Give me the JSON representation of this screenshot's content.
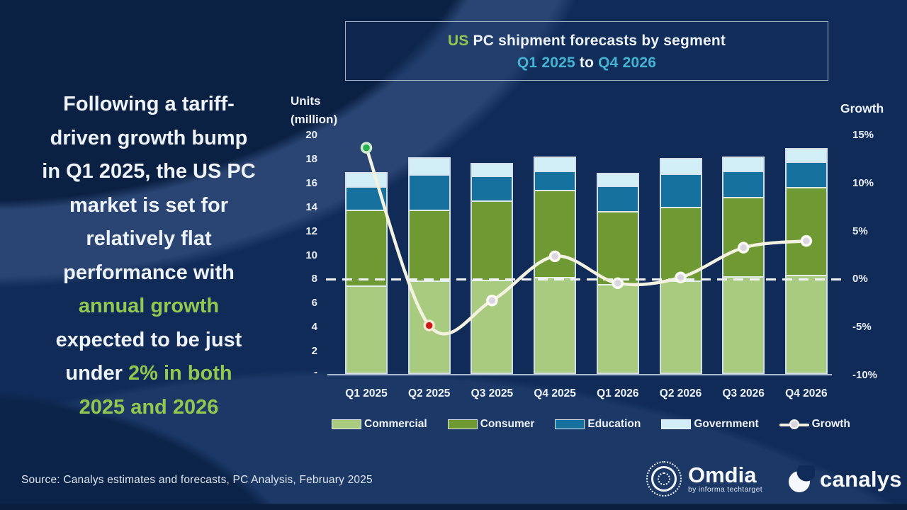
{
  "colors": {
    "text_white": "#eef3fa",
    "accent_green": "#92c84f",
    "accent_cyan": "#45b3d2",
    "line_cream": "#f3f1e0",
    "marker_green": "#27ae4f",
    "marker_red": "#d01717",
    "marker_gray": "#d9d6e0",
    "marker_ring": "#fbfbf5",
    "axis_line": "#a9bdd4"
  },
  "title_box": {
    "line1_parts": [
      {
        "t": "US",
        "c": "green"
      },
      {
        "t": " PC shipment forecasts by segment",
        "c": "white"
      }
    ],
    "line2_parts": [
      {
        "t": "Q1 2025",
        "c": "cyan"
      },
      {
        "t": " to ",
        "c": "white"
      },
      {
        "t": "Q4 2026",
        "c": "cyan"
      }
    ]
  },
  "annotation": {
    "lines": [
      {
        "parts": [
          {
            "t": "Following a tariff-",
            "c": "white"
          }
        ]
      },
      {
        "parts": [
          {
            "t": "driven growth bump",
            "c": "white"
          }
        ]
      },
      {
        "parts": [
          {
            "t": "in Q1 2025, the US PC",
            "c": "white"
          }
        ]
      },
      {
        "parts": [
          {
            "t": "market is set for",
            "c": "white"
          }
        ]
      },
      {
        "parts": [
          {
            "t": "relatively flat",
            "c": "white"
          }
        ]
      },
      {
        "parts": [
          {
            "t": "performance with",
            "c": "white"
          }
        ]
      },
      {
        "parts": [
          {
            "t": "annual growth",
            "c": "green"
          }
        ]
      },
      {
        "parts": [
          {
            "t": "expected to be just",
            "c": "white"
          }
        ]
      },
      {
        "parts": [
          {
            "t": "under ",
            "c": "white"
          },
          {
            "t": "2% in both",
            "c": "green"
          }
        ]
      },
      {
        "parts": [
          {
            "t": "2025 and 2026",
            "c": "green"
          }
        ]
      }
    ]
  },
  "chart_data": {
    "type": "bar",
    "subtype": "stacked-bars-with-growth-line",
    "title": "US PC shipment forecasts by segment Q1 2025 to Q4 2026",
    "categories": [
      "Q1 2025",
      "Q2 2025",
      "Q3 2025",
      "Q4 2025",
      "Q1 2026",
      "Q2 2026",
      "Q3 2026",
      "Q4 2026"
    ],
    "series": [
      {
        "name": "Commercial",
        "color": "#a9cb80",
        "values": [
          7.4,
          7.8,
          7.9,
          8.1,
          7.5,
          7.8,
          8.2,
          8.3
        ]
      },
      {
        "name": "Consumer",
        "color": "#6f9a33",
        "values": [
          6.4,
          6.0,
          6.7,
          7.4,
          6.2,
          6.2,
          6.7,
          7.4
        ]
      },
      {
        "name": "Education",
        "color": "#17719e",
        "values": [
          1.9,
          2.9,
          2.0,
          1.5,
          2.1,
          2.8,
          2.1,
          2.1
        ]
      },
      {
        "name": "Government",
        "color": "#d2eef7",
        "values": [
          1.1,
          1.35,
          1.0,
          1.1,
          0.95,
          1.2,
          1.1,
          1.0
        ]
      }
    ],
    "line_series": {
      "name": "Growth",
      "values_pct": [
        13.7,
        -4.8,
        -2.2,
        2.4,
        -0.4,
        0.2,
        3.3,
        4.0
      ],
      "marker_colors": [
        "green",
        "red",
        "gray",
        "gray",
        "gray",
        "gray",
        "gray",
        "gray"
      ]
    },
    "left_axis": {
      "label": "Units (million)",
      "label_lines": [
        "Units",
        "(million)"
      ],
      "range": [
        0,
        20
      ],
      "ticks": [
        20,
        18,
        16,
        14,
        12,
        10,
        8,
        6,
        4,
        2
      ],
      "zero_label": "-"
    },
    "right_axis": {
      "label": "Growth",
      "range": [
        -10,
        15
      ],
      "ticks": [
        15,
        10,
        5,
        0,
        -5,
        -10
      ],
      "format": "percent"
    },
    "zero_growth_dashed_line": true,
    "legend_position": "bottom"
  },
  "source": "Source: Canalys estimates and forecasts, PC Analysis, February 2025",
  "logos": {
    "omdia": "Omdia",
    "omdia_sub": "by informa techtarget",
    "canalys": "canalys"
  }
}
